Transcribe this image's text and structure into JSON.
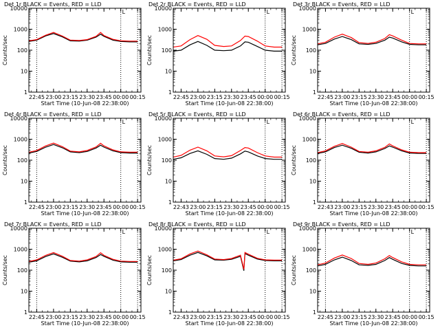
{
  "chart_data": [
    {
      "type": "line",
      "title": "Det 1r BLACK = Events, RED = LLD",
      "xlabel": "Start Time (10-Jun-08 22:38:00)",
      "ylabel": "Counts/sec",
      "yscale": "log",
      "ylim": [
        1,
        10000
      ],
      "x": [
        "22:38",
        "22:45",
        "22:53",
        "23:00",
        "23:08",
        "23:15",
        "23:23",
        "23:30",
        "23:38",
        "23:42",
        "23:45",
        "23:53",
        "24:00",
        "24:08",
        "24:15"
      ],
      "x_ticks": [
        "22:45",
        "23:00",
        "23:15",
        "23:30",
        "23:45",
        "00:00",
        "00:15"
      ],
      "y_ticks": [
        "1",
        "10",
        "100",
        "1000",
        "10000"
      ],
      "marker_label": "L",
      "vlines": [
        "22:45",
        "24:00",
        "24:15"
      ],
      "series": [
        {
          "color": "#000000",
          "values": [
            260,
            300,
            480,
            620,
            430,
            280,
            270,
            300,
            420,
            580,
            460,
            300,
            260,
            250,
            250
          ]
        },
        {
          "color": "#ff0000",
          "values": [
            280,
            320,
            520,
            700,
            470,
            300,
            290,
            320,
            460,
            700,
            500,
            330,
            280,
            270,
            270
          ]
        }
      ]
    },
    {
      "type": "line",
      "title": "Det 2r BLACK = Events, RED = LLD",
      "xlabel": "Start Time (10-Jun-08 22:38:00)",
      "ylabel": "Counts/sec",
      "yscale": "log",
      "ylim": [
        1,
        10000
      ],
      "x": [
        "22:38",
        "22:45",
        "22:53",
        "23:00",
        "23:08",
        "23:15",
        "23:23",
        "23:30",
        "23:38",
        "23:42",
        "23:45",
        "23:53",
        "24:00",
        "24:08",
        "24:15"
      ],
      "x_ticks": [
        "22:45",
        "23:00",
        "23:15",
        "23:30",
        "23:45",
        "00:00",
        "00:15"
      ],
      "y_ticks": [
        "1",
        "10",
        "100",
        "1000",
        "10000"
      ],
      "marker_label": "L",
      "vlines": [
        "24:00",
        "24:15"
      ],
      "series": [
        {
          "color": "#000000",
          "values": [
            90,
            100,
            180,
            260,
            170,
            100,
            95,
            100,
            160,
            250,
            240,
            150,
            100,
            90,
            90
          ]
        },
        {
          "color": "#ff0000",
          "values": [
            140,
            160,
            320,
            500,
            330,
            170,
            150,
            160,
            290,
            470,
            450,
            270,
            160,
            140,
            140
          ]
        }
      ]
    },
    {
      "type": "line",
      "title": "Det 3r BLACK = Events, RED = LLD",
      "xlabel": "Start Time (10-Jun-08 22:38:00)",
      "ylabel": "Counts/sec",
      "yscale": "log",
      "ylim": [
        1,
        10000
      ],
      "x": [
        "22:38",
        "22:45",
        "22:53",
        "23:00",
        "23:08",
        "23:15",
        "23:23",
        "23:30",
        "23:38",
        "23:42",
        "23:45",
        "23:53",
        "24:00",
        "24:08",
        "24:15"
      ],
      "x_ticks": [
        "22:45",
        "23:00",
        "23:15",
        "23:30",
        "23:45",
        "00:00",
        "00:15"
      ],
      "y_ticks": [
        "1",
        "10",
        "100",
        "1000",
        "10000"
      ],
      "marker_label": "L",
      "vlines": [
        "24:00",
        "24:15"
      ],
      "series": [
        {
          "color": "#000000",
          "values": [
            180,
            210,
            340,
            450,
            320,
            200,
            190,
            210,
            300,
            420,
            380,
            250,
            190,
            180,
            180
          ]
        },
        {
          "color": "#ff0000",
          "values": [
            200,
            240,
            420,
            580,
            400,
            230,
            210,
            240,
            360,
            550,
            480,
            300,
            210,
            200,
            200
          ]
        }
      ]
    },
    {
      "type": "line",
      "title": "Det 4r BLACK = Events, RED = LLD",
      "xlabel": "Start Time (10-Jun-08 22:38:00)",
      "ylabel": "Counts/sec",
      "yscale": "log",
      "ylim": [
        1,
        10000
      ],
      "x": [
        "22:38",
        "22:45",
        "22:53",
        "23:00",
        "23:08",
        "23:15",
        "23:23",
        "23:30",
        "23:38",
        "23:42",
        "23:45",
        "23:53",
        "24:00",
        "24:08",
        "24:15"
      ],
      "x_ticks": [
        "22:45",
        "23:00",
        "23:15",
        "23:30",
        "23:45",
        "00:00",
        "00:15"
      ],
      "y_ticks": [
        "1",
        "10",
        "100",
        "1000",
        "10000"
      ],
      "marker_label": "L",
      "vlines": [
        "22:45",
        "24:00",
        "24:15"
      ],
      "series": [
        {
          "color": "#000000",
          "values": [
            220,
            260,
            420,
            560,
            390,
            250,
            230,
            260,
            380,
            520,
            420,
            280,
            230,
            220,
            220
          ]
        },
        {
          "color": "#ff0000",
          "values": [
            240,
            290,
            480,
            650,
            440,
            270,
            250,
            290,
            430,
            640,
            480,
            310,
            250,
            240,
            240
          ]
        }
      ]
    },
    {
      "type": "line",
      "title": "Det 5r BLACK = Events, RED = LLD",
      "xlabel": "Start Time (10-Jun-08 22:38:00)",
      "ylabel": "Counts/sec",
      "yscale": "log",
      "ylim": [
        1,
        10000
      ],
      "x": [
        "22:38",
        "22:45",
        "22:53",
        "23:00",
        "23:08",
        "23:15",
        "23:23",
        "23:30",
        "23:38",
        "23:42",
        "23:45",
        "23:53",
        "24:00",
        "24:08",
        "24:15"
      ],
      "x_ticks": [
        "22:43",
        "23:00",
        "23:15",
        "23:30",
        "23:45",
        "00:00",
        "00:15"
      ],
      "y_ticks": [
        "1",
        "10",
        "100",
        "1000",
        "10000"
      ],
      "marker_label": "L",
      "vlines": [
        "24:00",
        "24:15"
      ],
      "series": [
        {
          "color": "#000000",
          "values": [
            110,
            130,
            210,
            280,
            190,
            120,
            110,
            125,
            200,
            270,
            250,
            160,
            120,
            110,
            110
          ]
        },
        {
          "color": "#ff0000",
          "values": [
            140,
            170,
            300,
            420,
            280,
            160,
            145,
            165,
            290,
            400,
            380,
            230,
            160,
            140,
            140
          ]
        }
      ]
    },
    {
      "type": "line",
      "title": "Det 6r BLACK = Events, RED = LLD",
      "xlabel": "Start Time (10-Jun-08 22:38:00)",
      "ylabel": "Counts/sec",
      "yscale": "log",
      "ylim": [
        1,
        10000
      ],
      "x": [
        "22:38",
        "22:45",
        "22:53",
        "23:00",
        "23:08",
        "23:15",
        "23:23",
        "23:30",
        "23:38",
        "23:42",
        "23:45",
        "23:53",
        "24:00",
        "24:08",
        "24:15"
      ],
      "x_ticks": [
        "22:43",
        "23:00",
        "23:15",
        "23:30",
        "23:45",
        "00:00",
        "00:15"
      ],
      "y_ticks": [
        "1",
        "10",
        "100",
        "1000",
        "10000"
      ],
      "marker_label": "L",
      "vlines": [
        "22:45",
        "24:00",
        "24:15"
      ],
      "series": [
        {
          "color": "#000000",
          "values": [
            210,
            250,
            400,
            520,
            370,
            240,
            220,
            250,
            360,
            480,
            420,
            280,
            220,
            210,
            210
          ]
        },
        {
          "color": "#ff0000",
          "values": [
            230,
            280,
            460,
            620,
            420,
            260,
            240,
            280,
            410,
            600,
            480,
            310,
            240,
            230,
            230
          ]
        }
      ]
    },
    {
      "type": "line",
      "title": "Det 7r BLACK = Events, RED = LLD",
      "xlabel": "Start Time (10-Jun-08 22:38:00)",
      "ylabel": "Counts/sec",
      "yscale": "log",
      "ylim": [
        1,
        10000
      ],
      "x": [
        "22:38",
        "22:45",
        "22:53",
        "23:00",
        "23:08",
        "23:15",
        "23:23",
        "23:30",
        "23:38",
        "23:42",
        "23:45",
        "23:53",
        "24:00",
        "24:08",
        "24:15"
      ],
      "x_ticks": [
        "22:45",
        "23:00",
        "23:15",
        "23:30",
        "23:45",
        "00:00",
        "00:15"
      ],
      "y_ticks": [
        "1",
        "10",
        "100",
        "1000",
        "10000"
      ],
      "marker_label": "L",
      "vlines": [
        "22:45",
        "24:00",
        "24:15"
      ],
      "series": [
        {
          "color": "#000000",
          "values": [
            240,
            280,
            450,
            600,
            410,
            270,
            250,
            280,
            400,
            560,
            460,
            300,
            250,
            240,
            240
          ]
        },
        {
          "color": "#ff0000",
          "values": [
            260,
            310,
            510,
            690,
            460,
            290,
            270,
            310,
            450,
            680,
            510,
            330,
            270,
            260,
            260
          ]
        }
      ]
    },
    {
      "type": "line",
      "title": "Det 8r BLACK = Events, RED = LLD",
      "xlabel": "Start Time (10-Jun-08 22:38:00)",
      "ylabel": "Counts/sec",
      "yscale": "log",
      "ylim": [
        1,
        10000
      ],
      "x": [
        "22:38",
        "22:45",
        "22:53",
        "23:00",
        "23:08",
        "23:15",
        "23:23",
        "23:30",
        "23:38",
        "23:41",
        "23:42",
        "23:45",
        "23:53",
        "24:00",
        "24:08",
        "24:15"
      ],
      "x_ticks": [
        "22:43",
        "23:00",
        "23:15",
        "23:30",
        "23:45",
        "00:00",
        "00:15"
      ],
      "y_ticks": [
        "1",
        "10",
        "100",
        "1000",
        "10000"
      ],
      "marker_label": "L",
      "vlines": [
        "24:00",
        "24:15"
      ],
      "series": [
        {
          "color": "#000000",
          "values": [
            280,
            320,
            520,
            700,
            480,
            310,
            300,
            330,
            460,
            95,
            620,
            520,
            340,
            290,
            280,
            280
          ]
        },
        {
          "color": "#ff0000",
          "values": [
            300,
            350,
            600,
            820,
            540,
            340,
            320,
            360,
            520,
            110,
            700,
            580,
            370,
            310,
            300,
            300
          ]
        }
      ]
    },
    {
      "type": "line",
      "title": "Det 9r BLACK = Events, RED = LLD",
      "xlabel": "Start Time (10-Jun-08 22:38:00)",
      "ylabel": "Counts/sec",
      "yscale": "log",
      "ylim": [
        1,
        10000
      ],
      "x": [
        "22:38",
        "22:45",
        "22:53",
        "23:00",
        "23:08",
        "23:15",
        "23:23",
        "23:30",
        "23:38",
        "23:42",
        "23:45",
        "23:53",
        "24:00",
        "24:08",
        "24:15"
      ],
      "x_ticks": [
        "22:45",
        "23:00",
        "23:15",
        "23:30",
        "23:45",
        "00:00",
        "00:15"
      ],
      "y_ticks": [
        "1",
        "10",
        "100",
        "1000",
        "10000"
      ],
      "marker_label": "L",
      "vlines": [
        "22:45",
        "24:00",
        "24:15"
      ],
      "series": [
        {
          "color": "#000000",
          "values": [
            160,
            190,
            310,
            420,
            290,
            180,
            170,
            190,
            290,
            400,
            330,
            210,
            170,
            160,
            160
          ]
        },
        {
          "color": "#ff0000",
          "values": [
            180,
            220,
            380,
            530,
            360,
            210,
            190,
            220,
            350,
            500,
            400,
            250,
            190,
            180,
            180
          ]
        }
      ]
    }
  ]
}
